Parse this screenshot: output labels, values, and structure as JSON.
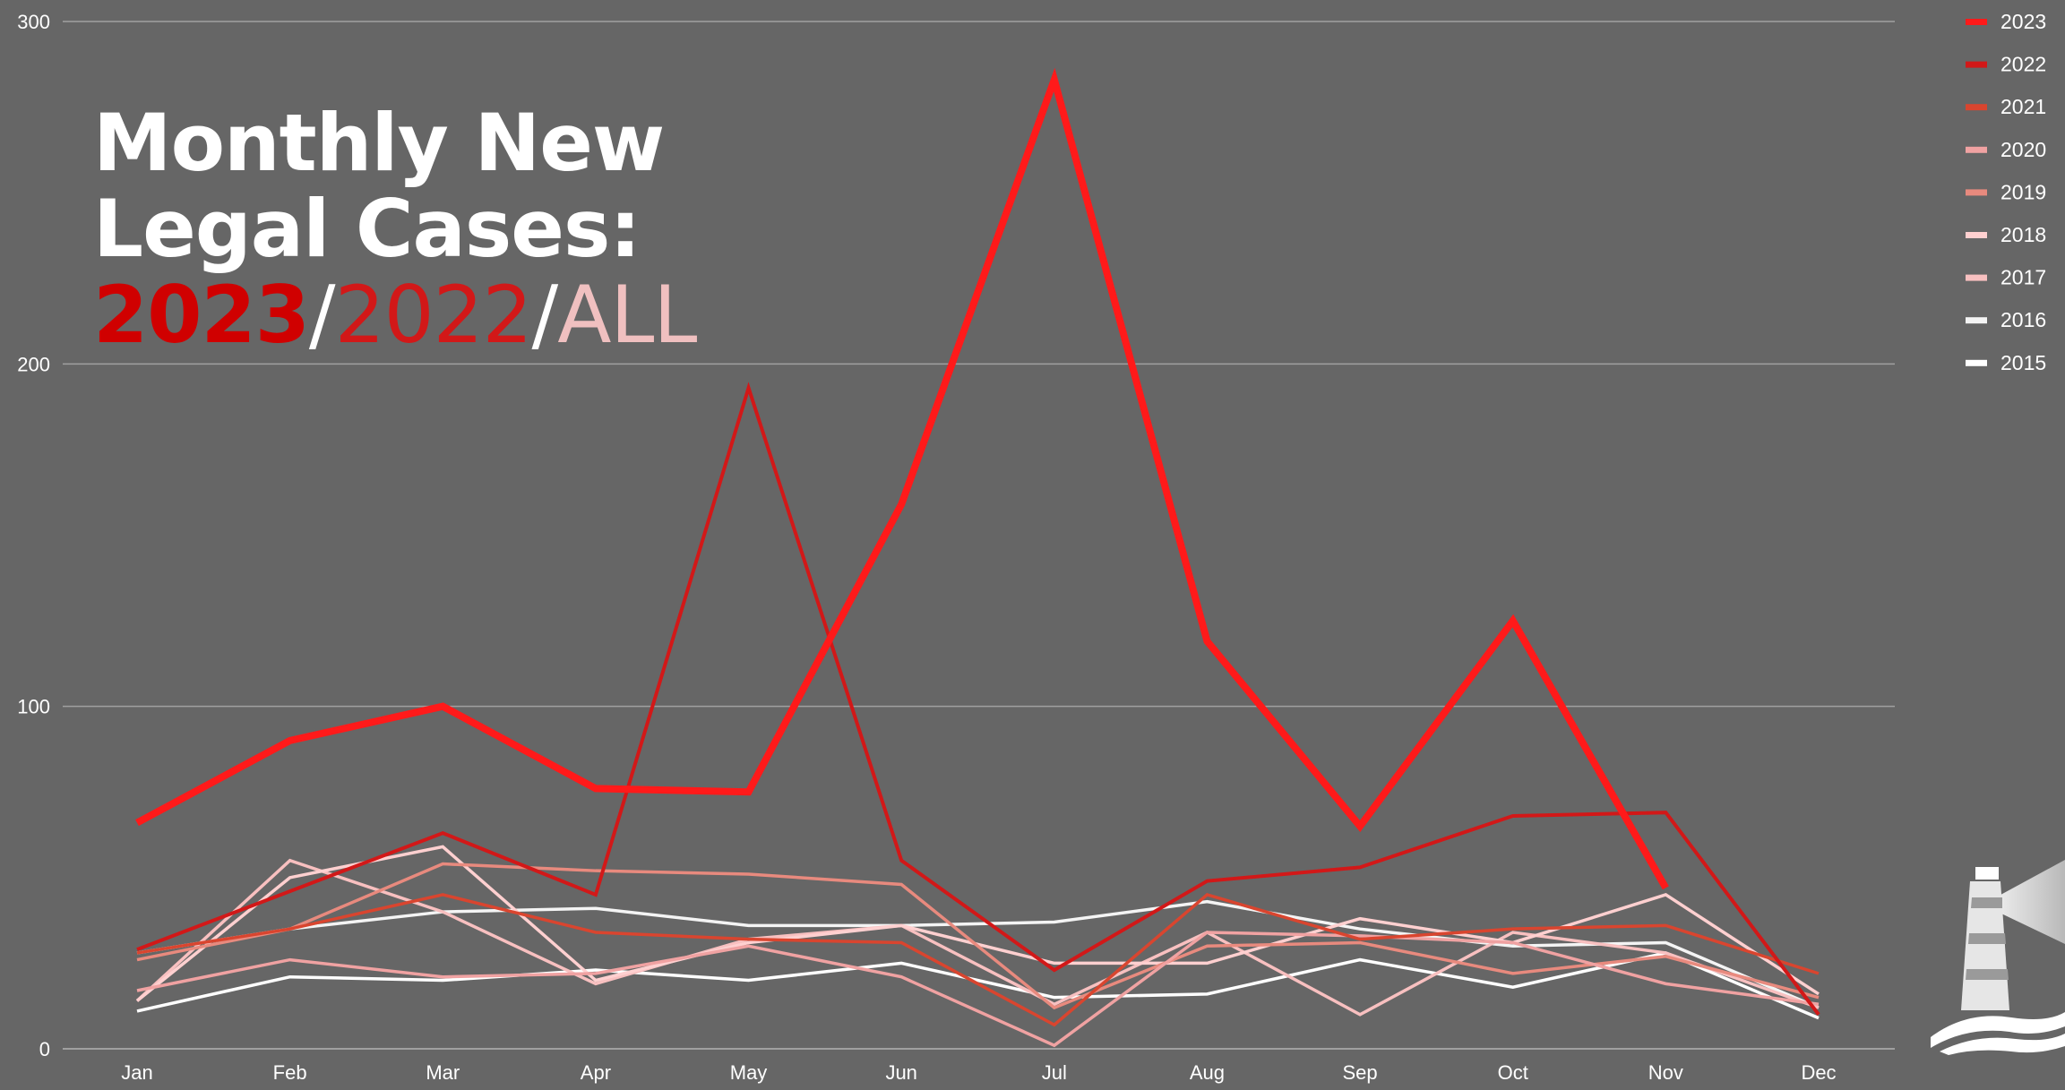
{
  "headline": {
    "line1": "Monthly New",
    "line2": "Legal Cases:",
    "part_2023": "2023",
    "slash1": "/",
    "part_2022": "2022",
    "slash2": "/",
    "part_all": "ALL"
  },
  "colors": {
    "background": "#666666",
    "grid": "#a0a0a0",
    "headline_2023": "#d00000",
    "headline_2022": "#d21818",
    "headline_all": "#f0c0c0"
  },
  "icons": [
    "lighthouse-logo-icon"
  ],
  "chart_data": {
    "type": "line",
    "title": "",
    "xlabel": "",
    "ylabel": "",
    "ylim": [
      0,
      300
    ],
    "yticks": [
      0,
      100,
      200,
      300
    ],
    "grid": true,
    "legend_position": "right",
    "categories": [
      "Jan",
      "Feb",
      "Mar",
      "Apr",
      "May",
      "Jun",
      "Jul",
      "Aug",
      "Sep",
      "Oct",
      "Nov",
      "Dec"
    ],
    "series": [
      {
        "name": "2023",
        "color": "#ff1a1a",
        "values": [
          66,
          90,
          100,
          76,
          75,
          159,
          283,
          119,
          65,
          125,
          47,
          null
        ]
      },
      {
        "name": "2022",
        "color": "#d21818",
        "values": [
          29,
          46,
          63,
          45,
          193,
          55,
          23,
          49,
          53,
          68,
          69,
          10
        ]
      },
      {
        "name": "2021",
        "color": "#d9452f",
        "values": [
          28,
          35,
          45,
          34,
          32,
          31,
          7,
          45,
          32,
          35,
          36,
          22
        ]
      },
      {
        "name": "2020",
        "color": "#f0a2a2",
        "values": [
          17,
          26,
          21,
          22,
          30,
          21,
          1,
          34,
          33,
          31,
          19,
          13
        ]
      },
      {
        "name": "2019",
        "color": "#e88a7e",
        "values": [
          26,
          35,
          54,
          52,
          51,
          48,
          12,
          30,
          31,
          22,
          27,
          15
        ]
      },
      {
        "name": "2018",
        "color": "#ffd0d0",
        "values": [
          14,
          50,
          59,
          20,
          31,
          36,
          25,
          25,
          38,
          31,
          45,
          16
        ]
      },
      {
        "name": "2017",
        "color": "#f8c0c0",
        "values": [
          14,
          55,
          40,
          19,
          32,
          36,
          13,
          34,
          10,
          34,
          28,
          12
        ]
      },
      {
        "name": "2016",
        "color": "#f4f4f4",
        "values": [
          28,
          35,
          40,
          41,
          36,
          36,
          37,
          43,
          35,
          30,
          31,
          12
        ]
      },
      {
        "name": "2015",
        "color": "#ffffff",
        "values": [
          11,
          21,
          20,
          23,
          20,
          25,
          15,
          16,
          26,
          18,
          28,
          9
        ]
      }
    ]
  }
}
